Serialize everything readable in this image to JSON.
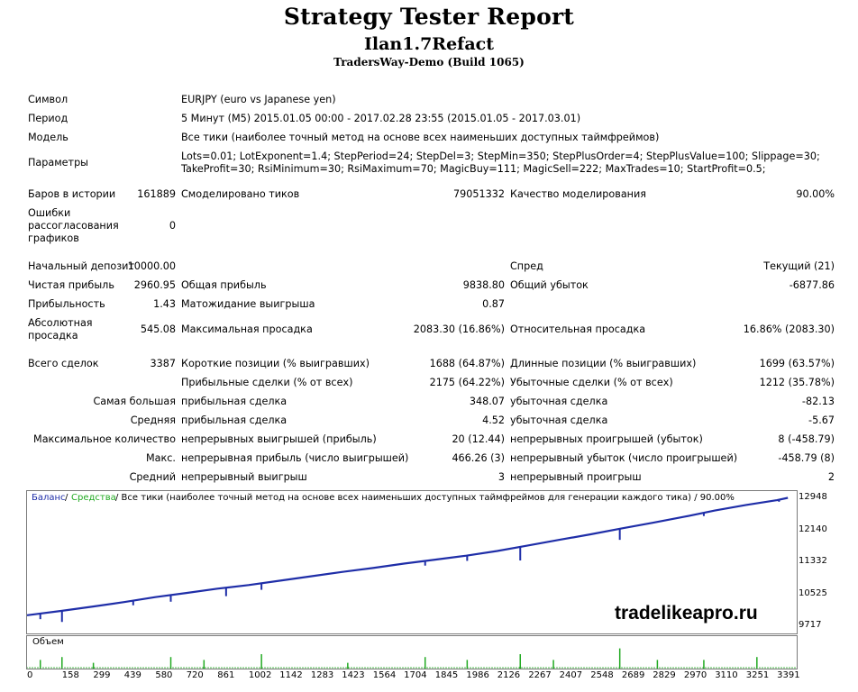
{
  "header": {
    "title": "Strategy Tester Report",
    "expert": "Ilan1.7Refact",
    "server": "TradersWay-Demo (Build 1065)"
  },
  "info": {
    "symbol_label": "Символ",
    "symbol_value": "EURJPY (euro vs Japanese yen)",
    "period_label": "Период",
    "period_value": "5 Минут (M5) 2015.01.05 00:00 - 2017.02.28 23:55 (2015.01.05 - 2017.03.01)",
    "model_label": "Модель",
    "model_value": "Все тики (наиболее точный метод на основе всех наименьших доступных таймфреймов)",
    "params_label": "Параметры",
    "params_line1": "Lots=0.01; LotExponent=1.4; StepPeriod=24; StepDel=3; StepMin=350; StepPlusOrder=4; StepPlusValue=100; Slippage=30;",
    "params_line2": "TakeProfit=30; RsiMinimum=30; RsiMaximum=70; MagicBuy=111; MagicSell=222; MaxTrades=10; StartProfit=0.5;"
  },
  "stats": {
    "bars_label": "Баров в истории",
    "bars_value": "161889",
    "ticks_label": "Смоделировано тиков",
    "ticks_value": "79051332",
    "quality_label": "Качество моделирования",
    "quality_value": "90.00%",
    "errors_label_1": "Ошибки",
    "errors_label_2": "рассогласования",
    "errors_label_3": "графиков",
    "errors_value": "0",
    "deposit_label": "Начальный депозит",
    "deposit_value": "10000.00",
    "spread_label": "Спред",
    "spread_value": "Текущий (21)",
    "net_label": "Чистая прибыль",
    "net_value": "2960.95",
    "gross_profit_label": "Общая прибыль",
    "gross_profit_value": "9838.80",
    "gross_loss_label": "Общий убыток",
    "gross_loss_value": "-6877.86",
    "pf_label": "Прибыльность",
    "pf_value": "1.43",
    "payoff_label": "Матожидание выигрыша",
    "payoff_value": "0.87",
    "abs_dd_label_1": "Абсолютная",
    "abs_dd_label_2": "просадка",
    "abs_dd_value": "545.08",
    "max_dd_label": "Максимальная просадка",
    "max_dd_value": "2083.30 (16.86%)",
    "rel_dd_label": "Относительная просадка",
    "rel_dd_value": "16.86% (2083.30)",
    "trades_label": "Всего сделок",
    "trades_value": "3387",
    "short_label": "Короткие позиции (% выигравших)",
    "short_value": "1688 (64.87%)",
    "long_label": "Длинные позиции (% выигравших)",
    "long_value": "1699 (63.57%)",
    "profit_trades_label": "Прибыльные сделки (% от всех)",
    "profit_trades_value": "2175 (64.22%)",
    "loss_trades_label": "Убыточные сделки (% от всех)",
    "loss_trades_value": "1212 (35.78%)",
    "largest_label": "Самая большая",
    "largest_profit_label": "прибыльная сделка",
    "largest_profit_value": "348.07",
    "largest_loss_label": "убыточная сделка",
    "largest_loss_value": "-82.13",
    "average_label": "Средняя",
    "average_profit_label": "прибыльная сделка",
    "average_profit_value": "4.52",
    "average_loss_label": "убыточная сделка",
    "average_loss_value": "-5.67",
    "max_count_label": "Максимальное количество",
    "max_wins_label": "непрерывных выигрышей (прибыль)",
    "max_wins_value": "20 (12.44)",
    "max_losses_label": "непрерывных проигрышей (убыток)",
    "max_losses_value": "8 (-458.79)",
    "max_label": "Макс.",
    "max_profit_label": "непрерывная прибыль (число выигрышей)",
    "max_profit_value": "466.26 (3)",
    "max_loss_label": "непрерывный убыток (число проигрышей)",
    "max_loss_value": "-458.79 (8)",
    "avg_cons_label": "Средний",
    "avg_wins_label": "непрерывный выигрыш",
    "avg_wins_value": "3",
    "avg_losses_label": "непрерывный проигрыш",
    "avg_losses_value": "2"
  },
  "chart_data": {
    "type": "line",
    "legend_balance": "Баланс",
    "legend_separator": "/",
    "legend_equity": "Средства",
    "legend_rest": "/ Все тики (наиболее точный метод на основе всех наименьших доступных таймфреймов для генерации каждого тика) / 90.00%",
    "volume_label": "Объем",
    "y_ticks": [
      "12948",
      "12140",
      "11332",
      "10525",
      "9717"
    ],
    "y_tick_values": [
      12948,
      12140,
      11332,
      10525,
      9717
    ],
    "x_ticks": [
      "0",
      "158",
      "299",
      "439",
      "580",
      "720",
      "861",
      "1002",
      "1142",
      "1283",
      "1423",
      "1564",
      "1704",
      "1845",
      "1986",
      "2126",
      "2267",
      "2407",
      "2548",
      "2689",
      "2829",
      "2970",
      "3110",
      "3251",
      "3391"
    ],
    "x_range": [
      0,
      3480
    ],
    "y_range": [
      9540,
      13130
    ],
    "balance_points": [
      [
        0,
        10000
      ],
      [
        158,
        10110
      ],
      [
        299,
        10220
      ],
      [
        439,
        10330
      ],
      [
        580,
        10455
      ],
      [
        720,
        10560
      ],
      [
        861,
        10670
      ],
      [
        1002,
        10760
      ],
      [
        1142,
        10870
      ],
      [
        1283,
        10980
      ],
      [
        1423,
        11090
      ],
      [
        1564,
        11190
      ],
      [
        1704,
        11300
      ],
      [
        1845,
        11400
      ],
      [
        1986,
        11500
      ],
      [
        2126,
        11620
      ],
      [
        2267,
        11760
      ],
      [
        2407,
        11900
      ],
      [
        2548,
        12040
      ],
      [
        2689,
        12190
      ],
      [
        2829,
        12330
      ],
      [
        2970,
        12480
      ],
      [
        3110,
        12640
      ],
      [
        3251,
        12780
      ],
      [
        3391,
        12900
      ],
      [
        3440,
        12960
      ]
    ],
    "drawdowns": [
      [
        60,
        9900
      ],
      [
        158,
        9830
      ],
      [
        480,
        10250
      ],
      [
        650,
        10340
      ],
      [
        900,
        10480
      ],
      [
        1060,
        10640
      ],
      [
        1800,
        11250
      ],
      [
        1990,
        11370
      ],
      [
        2230,
        11380
      ],
      [
        2680,
        11900
      ],
      [
        3060,
        12500
      ],
      [
        3400,
        12860
      ]
    ],
    "volume_spikes": [
      [
        60,
        3
      ],
      [
        158,
        4
      ],
      [
        300,
        2
      ],
      [
        650,
        4
      ],
      [
        800,
        3
      ],
      [
        1060,
        5
      ],
      [
        1450,
        2
      ],
      [
        1800,
        4
      ],
      [
        1990,
        3
      ],
      [
        2230,
        5
      ],
      [
        2380,
        3
      ],
      [
        2680,
        7
      ],
      [
        2850,
        3
      ],
      [
        3060,
        3
      ],
      [
        3300,
        4
      ]
    ],
    "colors": {
      "balance": "#1f2ea8",
      "volume": "#22aa22",
      "legend_equity": "#22aa22",
      "legend_balance": "#1f2ea8"
    },
    "watermark": "tradelikeapro.ru"
  }
}
